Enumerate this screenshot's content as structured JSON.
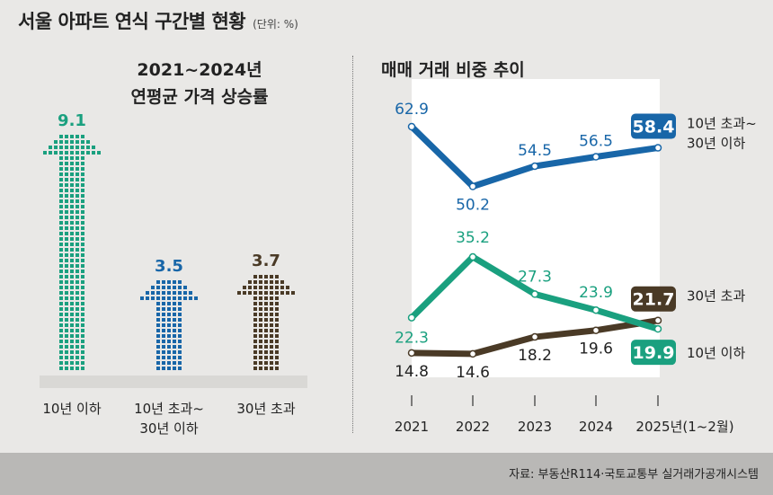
{
  "header": {
    "title": "서울 아파트 연식 구간별 현황",
    "unit": "(단위: %)"
  },
  "source": "자료: 부동산R114·국토교통부 실거래가공개시스템",
  "colors": {
    "green": "#1aa07f",
    "blue": "#1866a8",
    "brown": "#4a3a26",
    "panel": "#ffffff",
    "bg": "#e9e8e6"
  },
  "chart_data": [
    {
      "type": "bar",
      "title": "2021~2024년",
      "subtitle": "연평균 가격 상승률",
      "categories": [
        "10년 이하",
        "10년 초과~30년 이하",
        "30년 초과"
      ],
      "category_lines": [
        [
          "10년 이하"
        ],
        [
          "10년 초과~",
          "30년 이하"
        ],
        [
          "30년 초과"
        ]
      ],
      "values": [
        9.1,
        3.5,
        3.7
      ],
      "value_labels": [
        "9.1",
        "3.5",
        "3.7"
      ],
      "colors": [
        "#1aa07f",
        "#1866a8",
        "#4a3a26"
      ]
    },
    {
      "type": "line",
      "title": "매매 거래 비중 추이",
      "x": [
        "2021",
        "2022",
        "2023",
        "2024",
        "2025년(1~2월)"
      ],
      "ylim": [
        10,
        65
      ],
      "series": [
        {
          "name": "10년 초과~30년 이하",
          "name_lines": [
            "10년 초과~",
            "30년 이하"
          ],
          "values": [
            62.9,
            50.2,
            54.5,
            56.5,
            58.4
          ],
          "labels": [
            "62.9",
            "50.2",
            "54.5",
            "56.5",
            "58.4"
          ],
          "color": "#1866a8"
        },
        {
          "name": "30년 초과",
          "name_lines": [
            "30년 초과"
          ],
          "values": [
            14.8,
            14.6,
            18.2,
            19.6,
            21.7
          ],
          "labels": [
            "14.8",
            "14.6",
            "18.2",
            "19.6",
            "21.7"
          ],
          "color": "#4a3a26"
        },
        {
          "name": "10년 이하",
          "name_lines": [
            "10년 이하"
          ],
          "values": [
            22.3,
            35.2,
            27.3,
            23.9,
            19.9
          ],
          "labels": [
            "22.3",
            "35.2",
            "27.3",
            "23.9",
            "19.9"
          ],
          "color": "#1aa07f"
        }
      ]
    }
  ]
}
